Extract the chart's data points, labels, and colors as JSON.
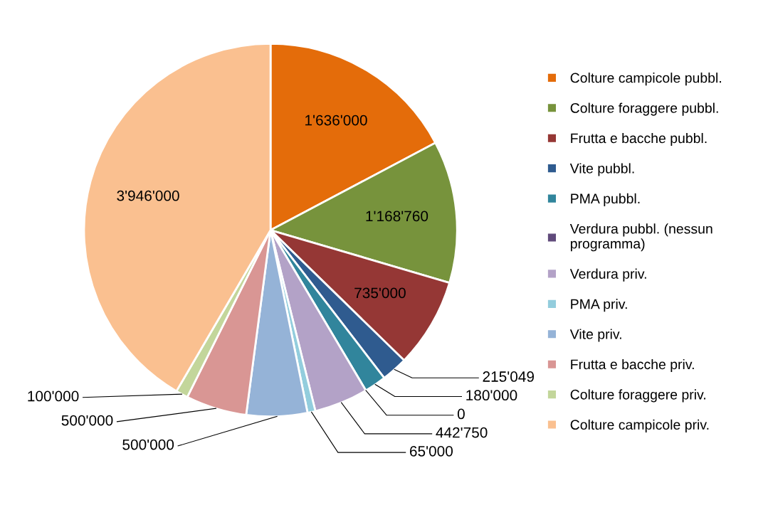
{
  "chart_data": {
    "type": "pie",
    "categories": [
      "Colture campicole pubbl.",
      "Colture foraggere pubbl.",
      "Frutta e bacche pubbl.",
      "Vite pubbl.",
      "PMA pubbl.",
      "Verdura pubbl. (nessun programma)",
      "Verdura priv.",
      "PMA priv.",
      "Vite priv.",
      "Frutta e bacche priv.",
      "Colture foraggere priv.",
      "Colture campicole priv."
    ],
    "values": [
      1636000,
      1168760,
      735000,
      215049,
      180000,
      0,
      442750,
      65000,
      500000,
      500000,
      100000,
      3946000
    ],
    "value_labels": [
      "1'636'000",
      "1'168'760",
      "735'000",
      "215'049",
      "180'000",
      "0",
      "442'750",
      "65'000",
      "500'000",
      "500'000",
      "100'000",
      "3'946'000"
    ],
    "colors": [
      "#e46c0a",
      "#77933c",
      "#953735",
      "#2f5b8f",
      "#31859c",
      "#604a7b",
      "#b3a2c7",
      "#93cddd",
      "#95b3d7",
      "#d99694",
      "#c3d69b",
      "#fac090"
    ],
    "legend": "right"
  }
}
